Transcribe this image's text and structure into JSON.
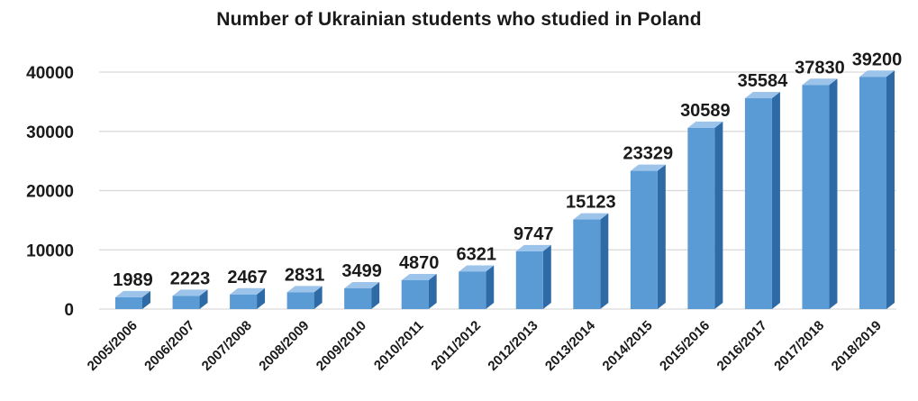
{
  "chart_data": {
    "type": "bar",
    "title": "Number of Ukrainian students who studied in Poland",
    "xlabel": "",
    "ylabel": "",
    "categories": [
      "2005/2006",
      "2006/2007",
      "2007/2008",
      "2008/2009",
      "2009/2010",
      "2010/2011",
      "2011/2012",
      "2012/2013",
      "2013/2014",
      "2014/2015",
      "2015/2016",
      "2016/2017",
      "2017/2018",
      "2018/2019"
    ],
    "values": [
      1989,
      2223,
      2467,
      2831,
      3499,
      4870,
      6321,
      9747,
      15123,
      23329,
      30589,
      35584,
      37830,
      39200
    ],
    "value_labels": [
      "1989",
      "2223",
      "2467",
      "2831",
      "3499",
      "4870",
      "6321",
      "9747",
      "15123",
      "23329",
      "30589",
      "35584",
      "37830",
      "39200"
    ],
    "yticks": [
      0,
      10000,
      20000,
      30000,
      40000
    ],
    "ytick_labels": [
      "0",
      "10000",
      "20000",
      "30000",
      "40000"
    ],
    "ylim": [
      0,
      40000
    ],
    "grid": true,
    "legend": "none",
    "colors": {
      "bar_front": "#5b9bd5",
      "bar_side": "#2e6aa6",
      "bar_top": "#9cc3ea",
      "grid": "#d9d9d9"
    }
  }
}
